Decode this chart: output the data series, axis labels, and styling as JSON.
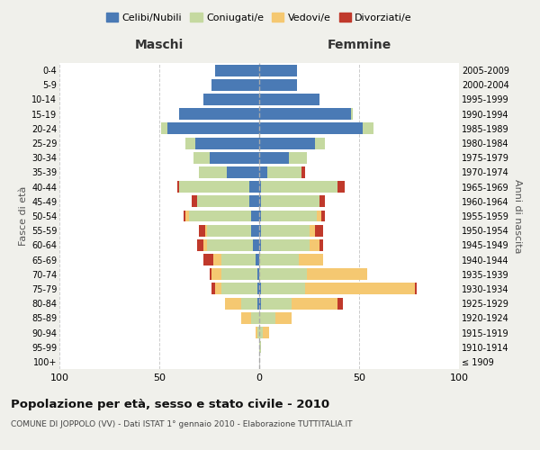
{
  "age_groups": [
    "100+",
    "95-99",
    "90-94",
    "85-89",
    "80-84",
    "75-79",
    "70-74",
    "65-69",
    "60-64",
    "55-59",
    "50-54",
    "45-49",
    "40-44",
    "35-39",
    "30-34",
    "25-29",
    "20-24",
    "15-19",
    "10-14",
    "5-9",
    "0-4"
  ],
  "birth_years": [
    "≤ 1909",
    "1910-1914",
    "1915-1919",
    "1920-1924",
    "1925-1929",
    "1930-1934",
    "1935-1939",
    "1940-1944",
    "1945-1949",
    "1950-1954",
    "1955-1959",
    "1960-1964",
    "1965-1969",
    "1970-1974",
    "1975-1979",
    "1980-1984",
    "1985-1989",
    "1990-1994",
    "1995-1999",
    "2000-2004",
    "2005-2009"
  ],
  "males": {
    "celibi": [
      0,
      0,
      0,
      0,
      1,
      1,
      1,
      2,
      3,
      4,
      4,
      5,
      5,
      16,
      25,
      32,
      46,
      40,
      28,
      24,
      22
    ],
    "coniugati": [
      0,
      0,
      1,
      4,
      8,
      18,
      18,
      17,
      23,
      22,
      31,
      26,
      35,
      14,
      8,
      5,
      3,
      0,
      0,
      0,
      0
    ],
    "vedovi": [
      0,
      0,
      1,
      5,
      8,
      3,
      5,
      4,
      2,
      1,
      2,
      0,
      0,
      0,
      0,
      0,
      0,
      0,
      0,
      0,
      0
    ],
    "divorziati": [
      0,
      0,
      0,
      0,
      0,
      2,
      1,
      5,
      3,
      3,
      1,
      3,
      1,
      0,
      0,
      0,
      0,
      0,
      0,
      0,
      0
    ]
  },
  "females": {
    "nubili": [
      0,
      0,
      0,
      0,
      1,
      1,
      0,
      0,
      1,
      1,
      1,
      1,
      1,
      4,
      15,
      28,
      52,
      46,
      30,
      19,
      19
    ],
    "coniugate": [
      0,
      1,
      2,
      8,
      15,
      22,
      24,
      20,
      24,
      24,
      28,
      29,
      38,
      17,
      9,
      5,
      5,
      1,
      0,
      0,
      0
    ],
    "vedove": [
      0,
      0,
      3,
      8,
      23,
      55,
      30,
      12,
      5,
      3,
      2,
      0,
      0,
      0,
      0,
      0,
      0,
      0,
      0,
      0,
      0
    ],
    "divorziate": [
      0,
      0,
      0,
      0,
      3,
      1,
      0,
      0,
      2,
      4,
      2,
      3,
      4,
      2,
      0,
      0,
      0,
      0,
      0,
      0,
      0
    ]
  },
  "colors": {
    "celibi": "#4a7ab5",
    "coniugati": "#c5d9a0",
    "vedovi": "#f5c871",
    "divorziati": "#c0392b"
  },
  "xlim": 100,
  "title": "Popolazione per età, sesso e stato civile - 2010",
  "subtitle": "COMUNE DI JOPPOLO (VV) - Dati ISTAT 1° gennaio 2010 - Elaborazione TUTTITALIA.IT",
  "ylabel_left": "Fasce di età",
  "ylabel_right": "Anni di nascita",
  "header_left": "Maschi",
  "header_right": "Femmine",
  "bg_color": "#f0f0eb",
  "plot_bg": "#ffffff"
}
